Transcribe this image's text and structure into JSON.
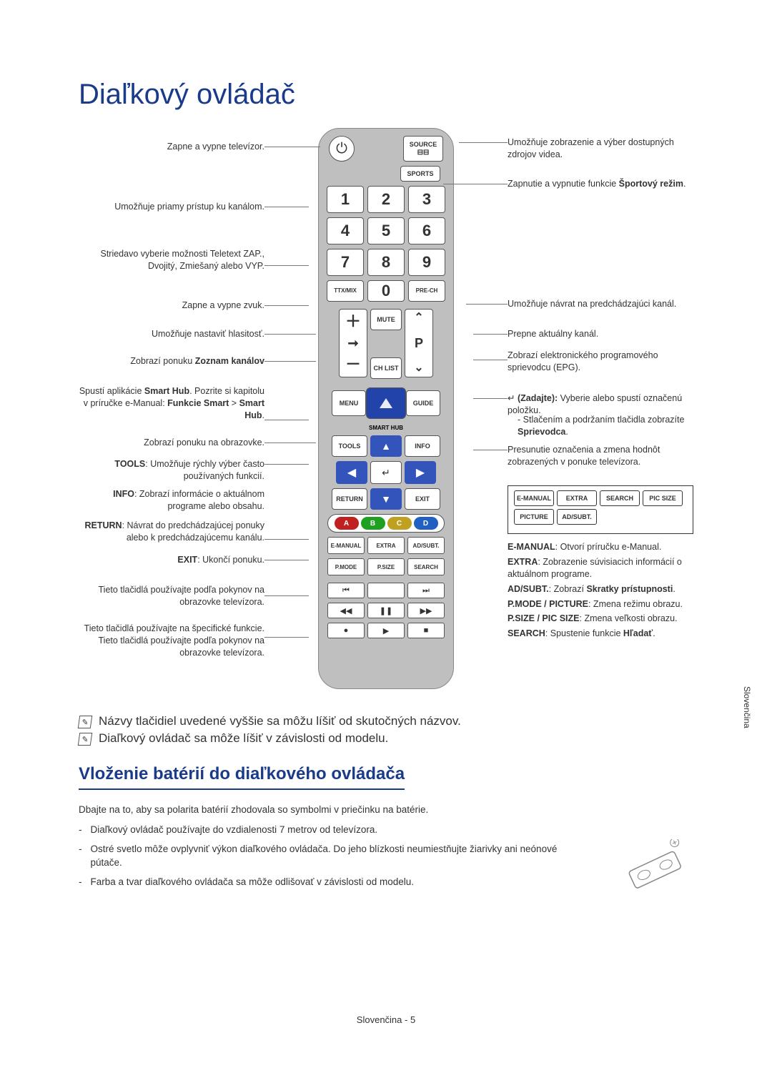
{
  "page": {
    "title": "Diaľkový ovládač",
    "subtitle": "Vloženie batérií do diaľkového ovládača",
    "footer": "Slovenčina - 5",
    "side_tab": "Slovenčina"
  },
  "left_labels": {
    "l1": "Zapne a vypne televízor.",
    "l2": "Umožňuje priamy prístup ku kanálom.",
    "l3": "Striedavo vyberie možnosti Teletext ZAP., Dvojitý, Zmiešaný alebo VYP.",
    "l4": "Zapne a vypne zvuk.",
    "l5": "Umožňuje nastaviť hlasitosť.",
    "l6_html": "Zobrazí ponuku <b>Zoznam kanálov</b>",
    "l7_html": "Spustí aplikácie <b>Smart Hub</b>. Pozrite si kapitolu v príručke e-Manual: <b>Funkcie Smart</b> > <b>Smart Hub</b>.",
    "l8": "Zobrazí ponuku na obrazovke.",
    "l9_html": "<b>TOOLS</b>: Umožňuje rýchly výber často používaných funkcií.",
    "l10_html": "<b>INFO</b>: Zobrazí informácie o aktuálnom programe alebo obsahu.",
    "l11_html": "<b>RETURN</b>: Návrat do predchádzajúcej ponuky alebo k predchádzajúcemu kanálu.",
    "l12_html": "<b>EXIT</b>: Ukončí ponuku.",
    "l13": "Tieto tlačidlá používajte podľa pokynov na obrazovke televízora.",
    "l14": "Tieto tlačidlá používajte na špecifické funkcie. Tieto tlačidlá používajte podľa pokynov na obrazovke televízora."
  },
  "right_labels": {
    "r1": "Umožňuje zobrazenie a výber dostupných zdrojov videa.",
    "r2_html": "Zapnutie a vypnutie funkcie <b>Športový režim</b>.",
    "r3": "Umožňuje návrat na predchádzajúci kanál.",
    "r4": "Prepne aktuálny kanál.",
    "r5": "Zobrazí elektronického programového sprievodcu (EPG).",
    "r6_html": "↵ <b>(Zadajte):</b> Vyberie alebo spustí označenú položku.",
    "r6b_html": "- Stlačením a podržaním tlačidla zobrazíte <b>Sprievodca</b>.",
    "r7": "Presunutie označenia a zmena hodnôt zobrazených v ponuke televízora.",
    "box_buttons": [
      "E-MANUAL",
      "EXTRA",
      "SEARCH",
      "PIC SIZE",
      "PICTURE",
      "AD/SUBT."
    ],
    "box1_html": "<b>E-MANUAL</b>: Otvorí príručku e-Manual.",
    "box2_html": "<b>EXTRA</b>: Zobrazenie súvisiacich informácií o aktuálnom programe.",
    "box3_html": "<b>AD/SUBT.</b>: Zobrazí <b>Skratky prístupnosti</b>.",
    "box4_html": "<b>P.MODE / PICTURE</b>: Zmena režimu obrazu.",
    "box5_html": "<b>P.SIZE / PIC SIZE</b>: Zmena veľkosti obrazu.",
    "box6_html": "<b>SEARCH</b>: Spustenie funkcie <b>Hľadať</b>."
  },
  "remote": {
    "source": "SOURCE",
    "sports": "SPORTS",
    "numbers": [
      "1",
      "2",
      "3",
      "4",
      "5",
      "6",
      "7",
      "8",
      "9"
    ],
    "ttxmix": "TTX/MIX",
    "zero": "0",
    "prech": "PRE-CH",
    "mute": "MUTE",
    "chlist": "CH LIST",
    "menu": "MENU",
    "guide": "GUIDE",
    "smart_hub": "SMART HUB",
    "tools": "TOOLS",
    "info": "INFO",
    "return": "RETURN",
    "exit": "EXIT",
    "colorA": "A",
    "colorB": "B",
    "colorC": "C",
    "colorD": "D",
    "grid1": [
      "E-MANUAL",
      "EXTRA",
      "AD/SUBT."
    ],
    "grid2": [
      "P.MODE",
      "P.SIZE",
      "SEARCH"
    ],
    "p_letter": "P"
  },
  "notes": {
    "n1": "Názvy tlačidiel uvedené vyššie sa môžu líšiť od skutočných názvov.",
    "n2": "Diaľkový ovládač sa môže líšiť v závislosti od modelu."
  },
  "battery": {
    "intro": "Dbajte na to, aby sa polarita batérií zhodovala so symbolmi v priečinku na batérie.",
    "b1": "Diaľkový ovládač používajte do vzdialenosti 7 metrov od televízora.",
    "b2": "Ostré svetlo môže ovplyvniť výkon diaľkového ovládača. Do jeho blízkosti neumiestňujte žiarivky ani neónové pútače.",
    "b3": "Farba a tvar diaľkového ovládača sa môže odlišovať v závislosti od modelu."
  },
  "colors": {
    "title": "#1a3a8a",
    "colA": "#c02020",
    "colB": "#20a020",
    "colC": "#c0a020",
    "colD": "#2060c0",
    "smart_hub": "#2244aa",
    "nav": "#3355bb"
  }
}
